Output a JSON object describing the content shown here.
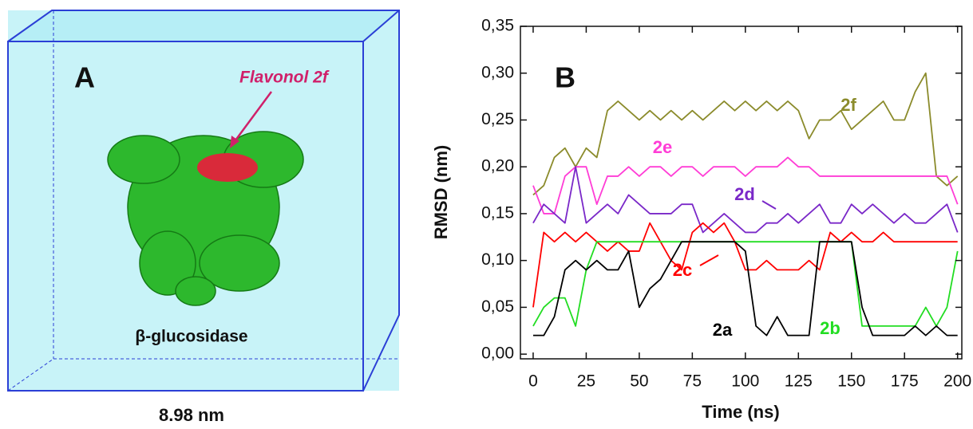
{
  "panel_a": {
    "label": "A",
    "annotation": "Flavonol 2f",
    "protein": "β-glucosidase",
    "scale": "8.98 nm"
  },
  "chart_data": {
    "type": "line",
    "panel_label": "B",
    "x_label": "Time (ns)",
    "y_label": "RMSD (nm)",
    "xlim": [
      -6,
      202
    ],
    "ylim": [
      -0.005,
      0.35
    ],
    "xticks": [
      0,
      25,
      50,
      75,
      100,
      125,
      150,
      175,
      200
    ],
    "yticks": [
      {
        "value": 0,
        "label": "0,00"
      },
      {
        "value": 0.05,
        "label": "0,05"
      },
      {
        "value": 0.1,
        "label": "0,10"
      },
      {
        "value": 0.15,
        "label": "0,15"
      },
      {
        "value": 0.2,
        "label": "0,20"
      },
      {
        "value": 0.25,
        "label": "0,25"
      },
      {
        "value": 0.3,
        "label": "0,30"
      },
      {
        "value": 0.35,
        "label": "0,35"
      }
    ],
    "x": [
      0,
      5,
      10,
      15,
      20,
      25,
      30,
      35,
      40,
      45,
      50,
      55,
      60,
      65,
      70,
      75,
      80,
      85,
      90,
      95,
      100,
      105,
      110,
      115,
      120,
      125,
      130,
      135,
      140,
      145,
      150,
      155,
      160,
      165,
      170,
      175,
      180,
      185,
      190,
      195,
      200
    ],
    "series": [
      {
        "name": "2f",
        "color": "#8b8b2b",
        "values": [
          0.17,
          0.18,
          0.21,
          0.22,
          0.2,
          0.22,
          0.21,
          0.26,
          0.27,
          0.26,
          0.25,
          0.26,
          0.25,
          0.26,
          0.25,
          0.26,
          0.25,
          0.26,
          0.27,
          0.26,
          0.27,
          0.26,
          0.27,
          0.26,
          0.27,
          0.26,
          0.23,
          0.25,
          0.25,
          0.26,
          0.24,
          0.25,
          0.26,
          0.27,
          0.25,
          0.25,
          0.28,
          0.3,
          0.19,
          0.18,
          0.19
        ]
      },
      {
        "name": "2e",
        "color": "#ff3dd6",
        "values": [
          0.18,
          0.15,
          0.15,
          0.19,
          0.2,
          0.2,
          0.16,
          0.19,
          0.19,
          0.2,
          0.19,
          0.2,
          0.2,
          0.19,
          0.2,
          0.2,
          0.19,
          0.2,
          0.2,
          0.2,
          0.19,
          0.2,
          0.2,
          0.2,
          0.21,
          0.2,
          0.2,
          0.19,
          0.19,
          0.19,
          0.19,
          0.19,
          0.19,
          0.19,
          0.19,
          0.19,
          0.19,
          0.19,
          0.19,
          0.19,
          0.16
        ]
      },
      {
        "name": "2d",
        "color": "#7a28c8",
        "values": [
          0.14,
          0.16,
          0.15,
          0.14,
          0.2,
          0.14,
          0.15,
          0.16,
          0.15,
          0.17,
          0.16,
          0.15,
          0.15,
          0.15,
          0.16,
          0.16,
          0.13,
          0.14,
          0.15,
          0.14,
          0.13,
          0.13,
          0.14,
          0.14,
          0.15,
          0.14,
          0.15,
          0.16,
          0.14,
          0.14,
          0.16,
          0.15,
          0.16,
          0.15,
          0.14,
          0.15,
          0.14,
          0.14,
          0.15,
          0.16,
          0.13
        ]
      },
      {
        "name": "2c",
        "color": "#ff0000",
        "values": [
          0.05,
          0.13,
          0.12,
          0.13,
          0.12,
          0.13,
          0.12,
          0.11,
          0.12,
          0.11,
          0.11,
          0.14,
          0.12,
          0.1,
          0.09,
          0.13,
          0.14,
          0.13,
          0.14,
          0.12,
          0.09,
          0.09,
          0.1,
          0.09,
          0.09,
          0.09,
          0.1,
          0.09,
          0.13,
          0.12,
          0.13,
          0.12,
          0.12,
          0.13,
          0.12,
          0.12,
          0.12,
          0.12,
          0.12,
          0.12,
          0.12
        ]
      },
      {
        "name": "2b",
        "color": "#22dd22",
        "values": [
          0.03,
          0.05,
          0.06,
          0.06,
          0.03,
          0.09,
          0.12,
          0.12,
          0.12,
          0.12,
          0.12,
          0.12,
          0.12,
          0.12,
          0.12,
          0.12,
          0.12,
          0.12,
          0.12,
          0.12,
          0.12,
          0.12,
          0.12,
          0.12,
          0.12,
          0.12,
          0.12,
          0.12,
          0.12,
          0.12,
          0.12,
          0.03,
          0.03,
          0.03,
          0.03,
          0.03,
          0.03,
          0.05,
          0.03,
          0.05,
          0.11
        ]
      },
      {
        "name": "2a",
        "color": "#000000",
        "values": [
          0.02,
          0.02,
          0.04,
          0.09,
          0.1,
          0.09,
          0.1,
          0.09,
          0.09,
          0.11,
          0.05,
          0.07,
          0.08,
          0.1,
          0.12,
          0.12,
          0.12,
          0.12,
          0.12,
          0.12,
          0.11,
          0.03,
          0.02,
          0.04,
          0.02,
          0.02,
          0.02,
          0.12,
          0.12,
          0.12,
          0.12,
          0.05,
          0.02,
          0.02,
          0.02,
          0.02,
          0.03,
          0.02,
          0.03,
          0.02,
          0.02
        ]
      }
    ]
  }
}
